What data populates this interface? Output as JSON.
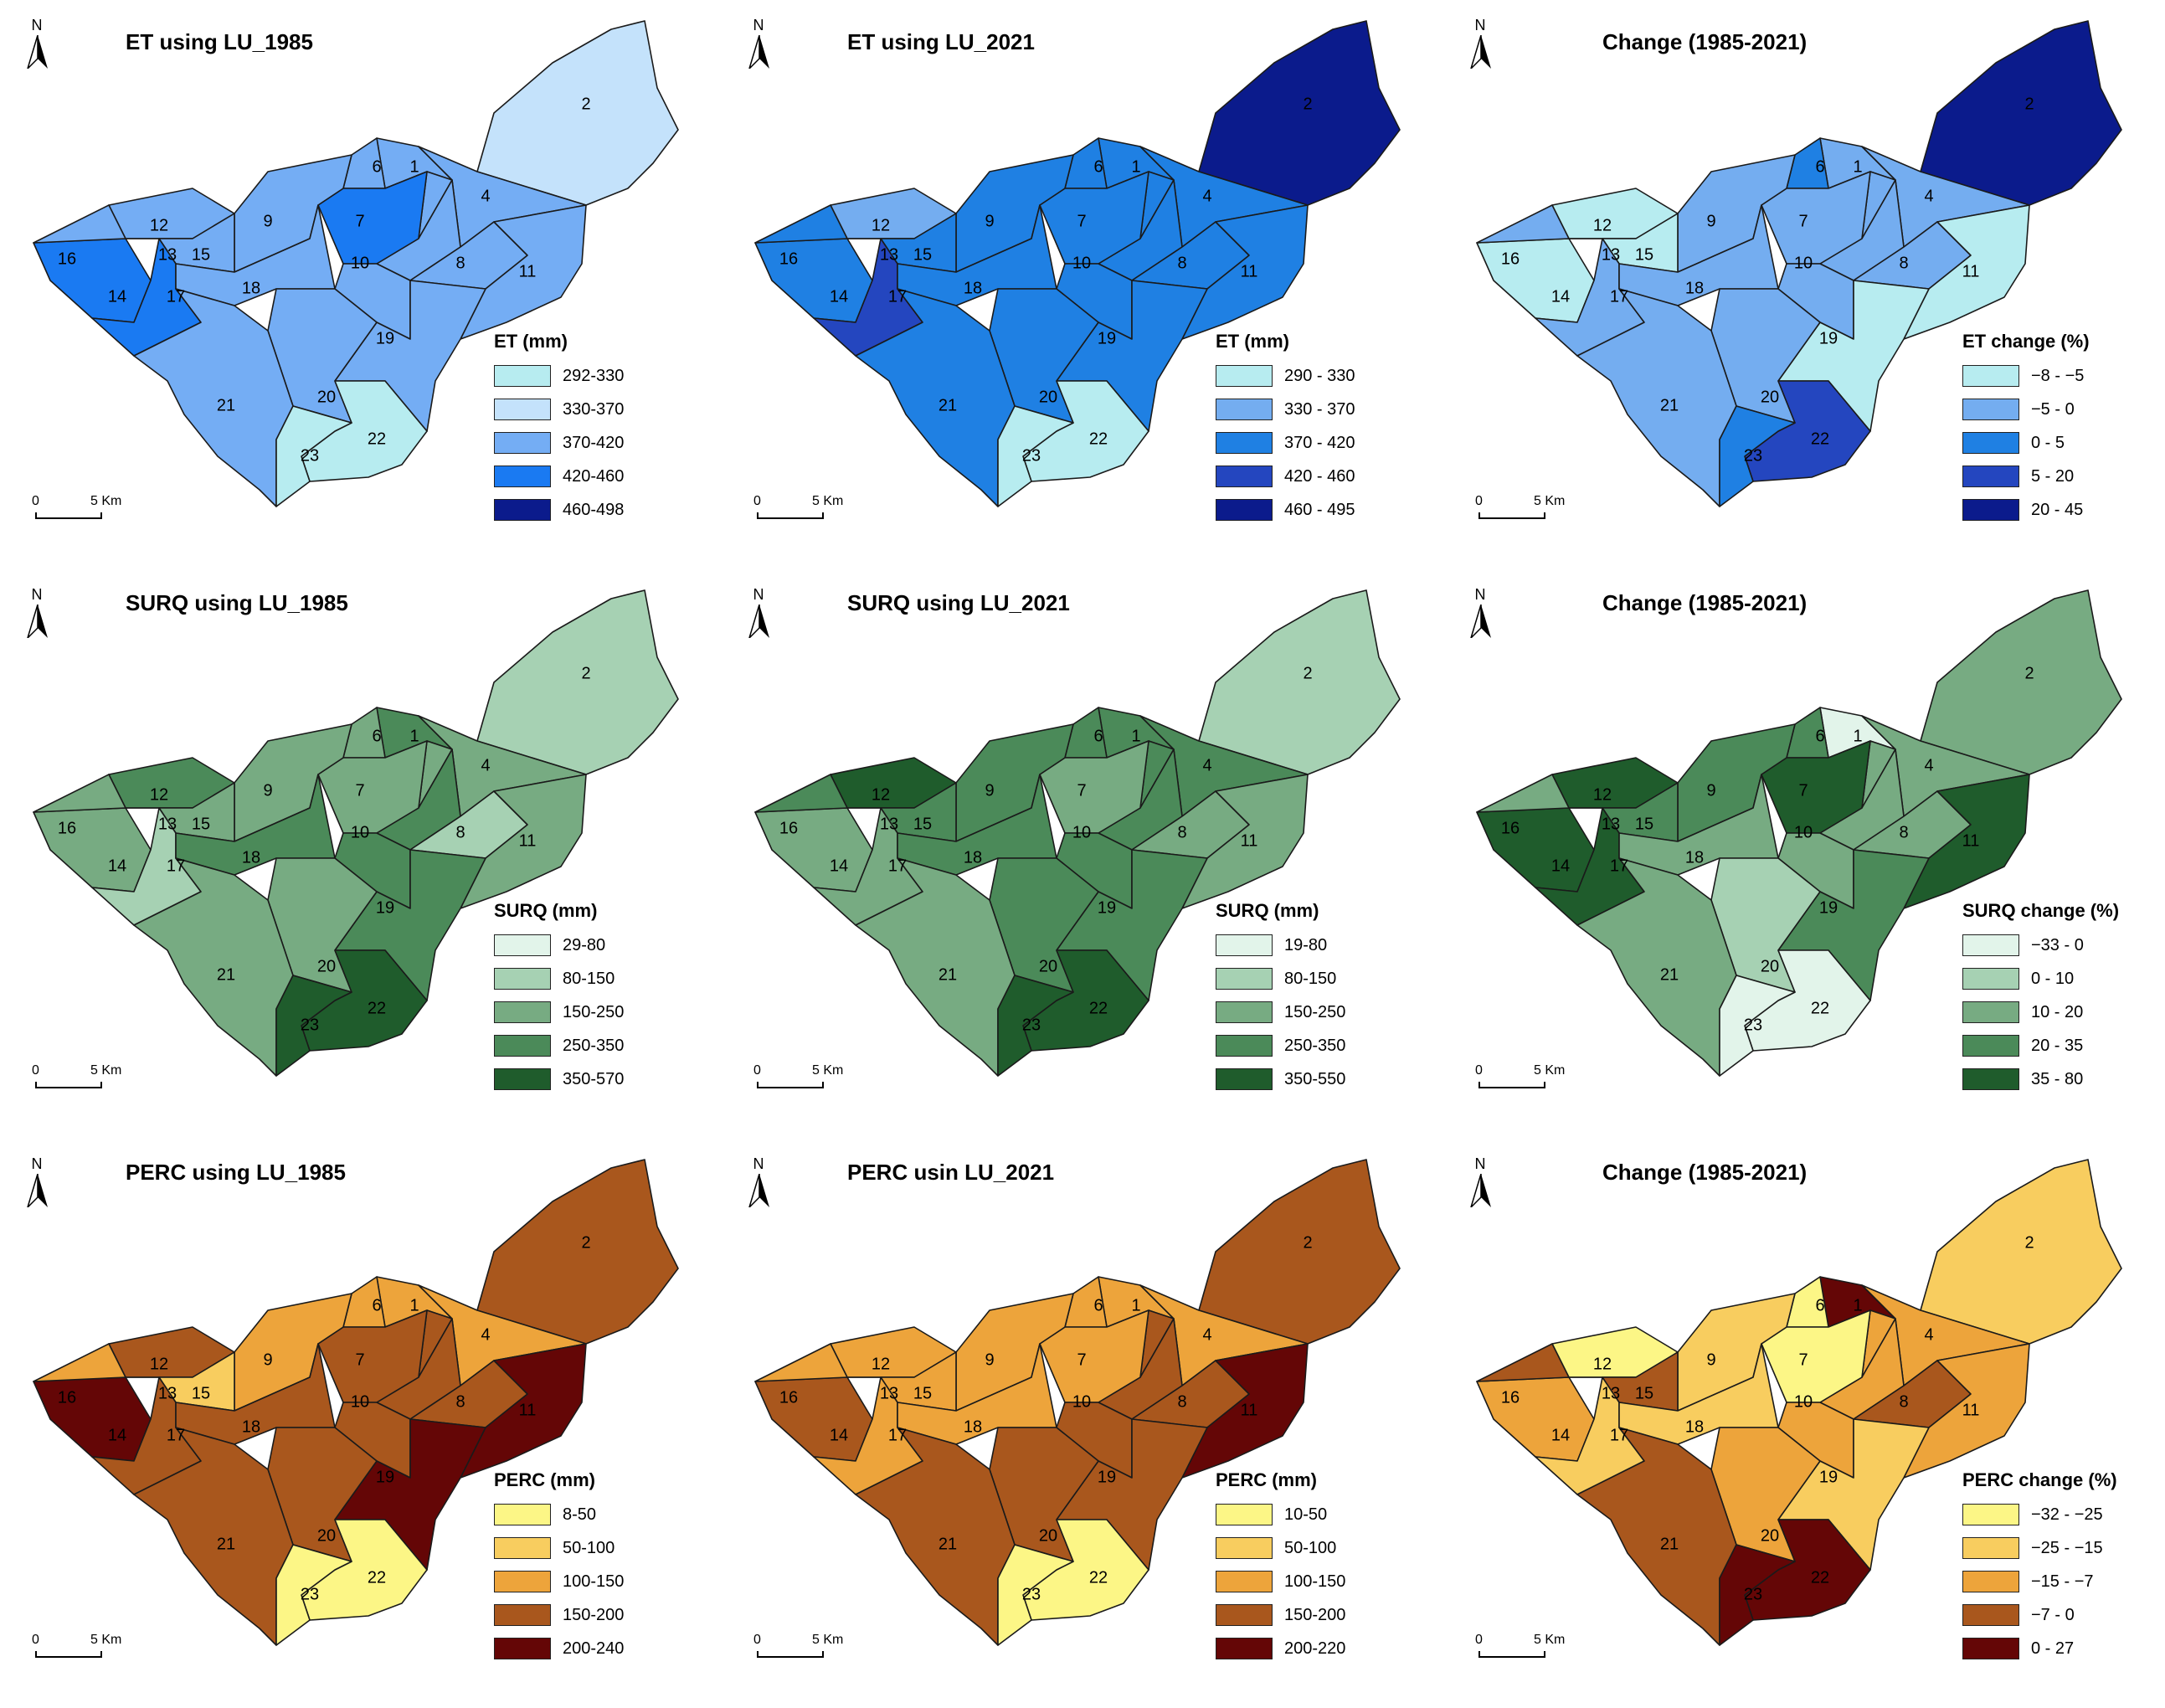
{
  "map_data": {
    "panels": [
      {
        "title": "ET using LU_1985",
        "legend_title": "ET (mm)",
        "legend": [
          {
            "label": "292-330",
            "color": "#b7ecf0"
          },
          {
            "label": "330-370",
            "color": "#c4e2fb"
          },
          {
            "label": "370-420",
            "color": "#74adf4"
          },
          {
            "label": "420-460",
            "color": "#1a7af2"
          },
          {
            "label": "460-498",
            "color": "#0b1b8c"
          }
        ],
        "classes": {
          "1": 2,
          "2": 1,
          "3": 2,
          "4": 2,
          "5": 2,
          "6": 2,
          "7": 3,
          "8": 2,
          "9": 2,
          "10": 2,
          "11": 2,
          "12": 2,
          "13": 2,
          "14": 3,
          "15": 2,
          "16": 2,
          "17": 3,
          "18": 2,
          "19": 2,
          "20": 2,
          "21": 2,
          "22": 0,
          "23": 0
        }
      },
      {
        "title": "ET using LU_2021",
        "legend_title": "ET (mm)",
        "legend": [
          {
            "label": "290 - 330",
            "color": "#b7ecf0"
          },
          {
            "label": "330 - 370",
            "color": "#74adf0"
          },
          {
            "label": "370 - 420",
            "color": "#1f80e3"
          },
          {
            "label": "420 - 460",
            "color": "#2446bf"
          },
          {
            "label": "460 - 495",
            "color": "#0b1b8c"
          }
        ],
        "classes": {
          "1": 2,
          "2": 4,
          "3": 2,
          "4": 2,
          "5": 2,
          "6": 2,
          "7": 2,
          "8": 2,
          "9": 2,
          "10": 2,
          "11": 2,
          "12": 1,
          "13": 2,
          "14": 2,
          "15": 2,
          "16": 2,
          "17": 3,
          "18": 2,
          "19": 2,
          "20": 2,
          "21": 2,
          "22": 0,
          "23": 0
        }
      },
      {
        "title": "Change (1985-2021)",
        "legend_title": "ET change (%)",
        "legend": [
          {
            "label": "−8 - −5",
            "color": "#b7ecf0"
          },
          {
            "label": "−5 - 0",
            "color": "#74adf0"
          },
          {
            "label": "0 - 5",
            "color": "#1f80e3"
          },
          {
            "label": "5 - 20",
            "color": "#2446bf"
          },
          {
            "label": "20 - 45",
            "color": "#0b1b8c"
          }
        ],
        "classes": {
          "1": 1,
          "2": 4,
          "3": 1,
          "4": 1,
          "5": 1,
          "6": 2,
          "7": 1,
          "8": 1,
          "9": 1,
          "10": 1,
          "11": 0,
          "12": 0,
          "13": 0,
          "14": 0,
          "15": 0,
          "16": 1,
          "17": 1,
          "18": 1,
          "19": 0,
          "20": 1,
          "21": 1,
          "22": 3,
          "23": 2
        }
      },
      {
        "title": "SURQ using LU_1985",
        "legend_title": "SURQ (mm)",
        "legend": [
          {
            "label": "29-80",
            "color": "#e2f4ea"
          },
          {
            "label": "80-150",
            "color": "#a6d1b3"
          },
          {
            "label": "150-250",
            "color": "#77ab82"
          },
          {
            "label": "250-350",
            "color": "#4b8a59"
          },
          {
            "label": "350-570",
            "color": "#1f5c2c"
          }
        ],
        "classes": {
          "1": 3,
          "2": 1,
          "3": 2,
          "4": 2,
          "5": 3,
          "6": 2,
          "7": 2,
          "8": 1,
          "9": 2,
          "10": 3,
          "11": 2,
          "12": 3,
          "13": 2,
          "14": 2,
          "15": 2,
          "16": 2,
          "17": 1,
          "18": 3,
          "19": 3,
          "20": 2,
          "21": 2,
          "22": 4,
          "23": 4
        }
      },
      {
        "title": "SURQ using LU_2021",
        "legend_title": "SURQ (mm)",
        "legend": [
          {
            "label": "19-80",
            "color": "#e2f4ea"
          },
          {
            "label": "80-150",
            "color": "#a6d1b3"
          },
          {
            "label": "150-250",
            "color": "#77ab82"
          },
          {
            "label": "250-350",
            "color": "#4b8a59"
          },
          {
            "label": "350-550",
            "color": "#1f5c2c"
          }
        ],
        "classes": {
          "1": 3,
          "2": 1,
          "3": 3,
          "4": 3,
          "5": 3,
          "6": 3,
          "7": 2,
          "8": 2,
          "9": 3,
          "10": 3,
          "11": 2,
          "12": 4,
          "13": 3,
          "14": 2,
          "15": 3,
          "16": 3,
          "17": 2,
          "18": 3,
          "19": 3,
          "20": 3,
          "21": 2,
          "22": 4,
          "23": 4
        }
      },
      {
        "title": "Change (1985-2021)",
        "legend_title": "SURQ change (%)",
        "legend": [
          {
            "label": "−33 - 0",
            "color": "#e2f4ea"
          },
          {
            "label": "0 - 10",
            "color": "#a6d1b3"
          },
          {
            "label": "10 - 20",
            "color": "#77ab82"
          },
          {
            "label": "20 - 35",
            "color": "#4b8a59"
          },
          {
            "label": "35 - 80",
            "color": "#1f5c2c"
          }
        ],
        "classes": {
          "1": 0,
          "2": 2,
          "3": 2,
          "4": 2,
          "5": 2,
          "6": 3,
          "7": 4,
          "8": 2,
          "9": 3,
          "10": 2,
          "11": 4,
          "12": 4,
          "13": 3,
          "14": 4,
          "15": 3,
          "16": 2,
          "17": 4,
          "18": 2,
          "19": 3,
          "20": 1,
          "21": 2,
          "22": 0,
          "23": 0
        }
      },
      {
        "title": "PERC using LU_1985",
        "legend_title": "PERC (mm)",
        "legend": [
          {
            "label": "8-50",
            "color": "#fcf686"
          },
          {
            "label": "50-100",
            "color": "#f8cd5f"
          },
          {
            "label": "100-150",
            "color": "#eda43b"
          },
          {
            "label": "150-200",
            "color": "#a9571d"
          },
          {
            "label": "200-240",
            "color": "#640606"
          }
        ],
        "classes": {
          "1": 2,
          "2": 3,
          "3": 3,
          "4": 2,
          "5": 3,
          "6": 2,
          "7": 3,
          "8": 3,
          "9": 2,
          "10": 3,
          "11": 4,
          "12": 3,
          "13": 2,
          "14": 4,
          "15": 1,
          "16": 2,
          "17": 3,
          "18": 3,
          "19": 4,
          "20": 3,
          "21": 3,
          "22": 0,
          "23": 0
        }
      },
      {
        "title": "PERC usin LU_2021",
        "legend_title": "PERC (mm)",
        "legend": [
          {
            "label": "10-50",
            "color": "#fcf686"
          },
          {
            "label": "50-100",
            "color": "#f8cd5f"
          },
          {
            "label": "100-150",
            "color": "#eda43b"
          },
          {
            "label": "150-200",
            "color": "#a9571d"
          },
          {
            "label": "200-220",
            "color": "#640606"
          }
        ],
        "classes": {
          "1": 2,
          "2": 3,
          "3": 3,
          "4": 2,
          "5": 3,
          "6": 2,
          "7": 2,
          "8": 3,
          "9": 2,
          "10": 3,
          "11": 4,
          "12": 2,
          "13": 2,
          "14": 3,
          "15": 2,
          "16": 2,
          "17": 2,
          "18": 2,
          "19": 3,
          "20": 3,
          "21": 3,
          "22": 0,
          "23": 0
        }
      },
      {
        "title": "Change (1985-2021)",
        "legend_title": "PERC change (%)",
        "legend": [
          {
            "label": "−32 - −25",
            "color": "#fcf686"
          },
          {
            "label": "−25 - −15",
            "color": "#f8cd5f"
          },
          {
            "label": "−15 - −7",
            "color": "#eda43b"
          },
          {
            "label": "−7 - 0",
            "color": "#a9571d"
          },
          {
            "label": "0 - 27",
            "color": "#640606"
          }
        ],
        "classes": {
          "1": 4,
          "2": 1,
          "3": 2,
          "4": 2,
          "5": 2,
          "6": 0,
          "7": 0,
          "8": 3,
          "9": 1,
          "10": 2,
          "11": 2,
          "12": 0,
          "13": 1,
          "14": 2,
          "15": 3,
          "16": 3,
          "17": 1,
          "18": 1,
          "19": 1,
          "20": 2,
          "21": 3,
          "22": 4,
          "23": 4
        }
      }
    ],
    "north_label": "N",
    "scale": {
      "start": "0",
      "end": "5 Km"
    }
  }
}
